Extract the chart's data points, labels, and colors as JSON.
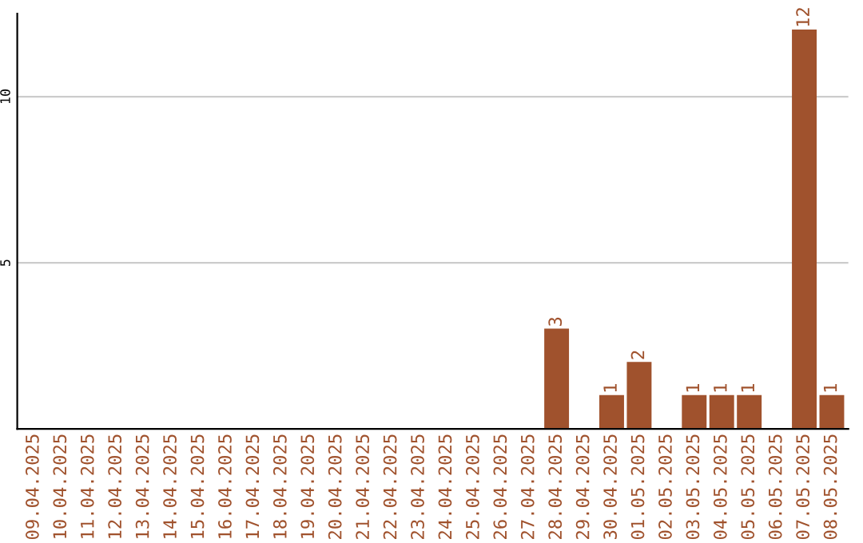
{
  "chart_data": {
    "type": "bar",
    "categories": [
      "09.04.2025",
      "10.04.2025",
      "11.04.2025",
      "12.04.2025",
      "13.04.2025",
      "14.04.2025",
      "15.04.2025",
      "16.04.2025",
      "17.04.2025",
      "18.04.2025",
      "19.04.2025",
      "20.04.2025",
      "21.04.2025",
      "22.04.2025",
      "23.04.2025",
      "24.04.2025",
      "25.04.2025",
      "26.04.2025",
      "27.04.2025",
      "28.04.2025",
      "29.04.2025",
      "30.04.2025",
      "01.05.2025",
      "02.05.2025",
      "03.05.2025",
      "04.05.2025",
      "05.05.2025",
      "06.05.2025",
      "07.05.2025",
      "08.05.2025"
    ],
    "values": [
      0,
      0,
      0,
      0,
      0,
      0,
      0,
      0,
      0,
      0,
      0,
      0,
      0,
      0,
      0,
      0,
      0,
      0,
      0,
      3,
      0,
      1,
      2,
      0,
      1,
      1,
      1,
      0,
      12,
      1
    ],
    "value_labels": [
      null,
      null,
      null,
      null,
      null,
      null,
      null,
      null,
      null,
      null,
      null,
      null,
      null,
      null,
      null,
      null,
      null,
      null,
      null,
      "3",
      null,
      "1",
      "2",
      null,
      "1",
      "1",
      "1",
      null,
      "12",
      "1"
    ],
    "color": "#a0522d",
    "ylim": [
      0,
      12.5
    ],
    "yticks": [
      5,
      10
    ],
    "grid": "y"
  }
}
